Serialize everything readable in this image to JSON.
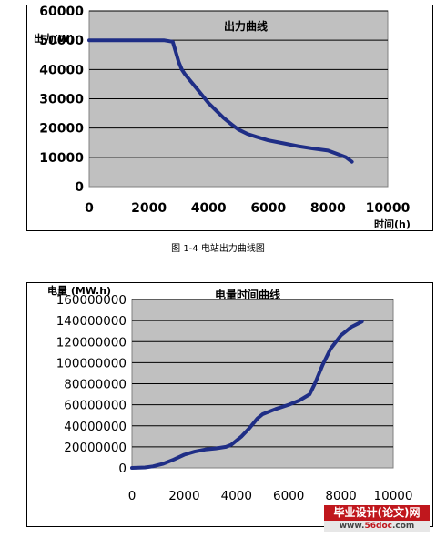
{
  "caption": "图 1-4  电站出力曲线图",
  "watermark": {
    "top": "毕业设计(论文)网",
    "bottom_pre": "www.",
    "bottom_red": "56doc",
    "bottom_post": ".com"
  },
  "colors": {
    "plot_bg": "#c0c0c0",
    "series": "#1f2e86",
    "grid": "#000000"
  },
  "chart_data": [
    {
      "type": "line",
      "title": "出力曲线",
      "ylabel": "出力(W)",
      "xlabel": "时间(h)",
      "xlim": [
        0,
        10000
      ],
      "ylim": [
        0,
        60000
      ],
      "xticks": [
        "0",
        "2000",
        "4000",
        "6000",
        "8000",
        "10000"
      ],
      "yticks": [
        "0",
        "10000",
        "20000",
        "30000",
        "40000",
        "50000",
        "60000"
      ],
      "grid": true,
      "series": [
        {
          "x": [
            0,
            500,
            1000,
            1500,
            2000,
            2500,
            2800,
            2900,
            3000,
            3100,
            3200,
            3400,
            3600,
            3800,
            4000,
            4200,
            4500,
            4800,
            5000,
            5300,
            5600,
            6000,
            6500,
            7000,
            7500,
            8000,
            8300,
            8600,
            8800
          ],
          "y": [
            50000,
            50000,
            50000,
            50000,
            50000,
            50000,
            49500,
            46000,
            42500,
            40000,
            38500,
            36000,
            33500,
            31000,
            28500,
            26500,
            23500,
            21000,
            19500,
            18000,
            17000,
            15800,
            14800,
            13800,
            13000,
            12300,
            11200,
            10000,
            8500
          ]
        }
      ]
    },
    {
      "type": "line",
      "title": "电量时间曲线",
      "ylabel": "电量 (MW.h)",
      "xlabel": "",
      "xlim": [
        0,
        10000
      ],
      "ylim": [
        0,
        160000000
      ],
      "xticks": [
        "0",
        "2000",
        "4000",
        "6000",
        "8000",
        "10000"
      ],
      "yticks": [
        "0",
        "20000000",
        "40000000",
        "60000000",
        "80000000",
        "100000000",
        "120000000",
        "140000000",
        "160000000"
      ],
      "grid": true,
      "series": [
        {
          "x": [
            0,
            500,
            800,
            1200,
            1600,
            2000,
            2400,
            2800,
            3200,
            3600,
            3800,
            4200,
            4500,
            4800,
            5000,
            5500,
            6000,
            6400,
            6800,
            7000,
            7300,
            7600,
            8000,
            8400,
            8800
          ],
          "y": [
            0,
            400000,
            1500000,
            4000000,
            8000000,
            12500000,
            15500000,
            17500000,
            18500000,
            20000000,
            22000000,
            30000000,
            38000000,
            47000000,
            51000000,
            56000000,
            60000000,
            64000000,
            70000000,
            80000000,
            98000000,
            113000000,
            126000000,
            134000000,
            139000000
          ]
        }
      ]
    }
  ]
}
